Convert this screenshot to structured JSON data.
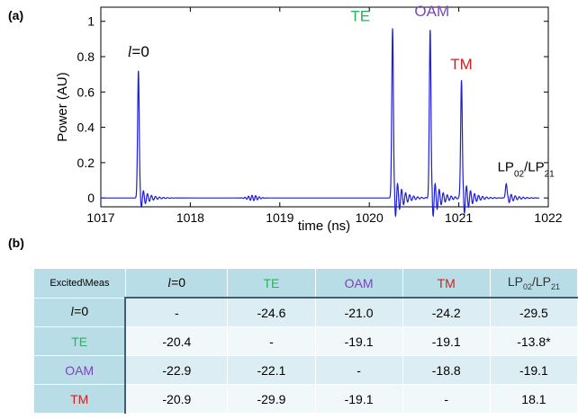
{
  "panel_labels": {
    "a": "(a)",
    "b": "(b)"
  },
  "chart_data": {
    "type": "line",
    "xlabel": "time (ns)",
    "ylabel": "Power (AU)",
    "xlim": [
      1017,
      1022
    ],
    "ylim": [
      -0.05,
      1.08
    ],
    "xticks": [
      "1017",
      "1018",
      "1019",
      "1020",
      "1021",
      "1022"
    ],
    "yticks": [
      "0",
      "0.2",
      "0.4",
      "0.6",
      "0.8",
      "1"
    ],
    "line_color": "#1f1fd6",
    "grid": false,
    "series": [
      {
        "peaks": [
          {
            "x": 1017.42,
            "y": 0.72
          },
          {
            "x": 1020.26,
            "y": 0.96
          },
          {
            "x": 1020.68,
            "y": 0.95
          },
          {
            "x": 1021.03,
            "y": 0.67
          },
          {
            "x": 1021.53,
            "y": 0.08
          }
        ]
      }
    ],
    "annotations": [
      {
        "text_prefix": "l",
        "text": "=0",
        "x": 1017.42,
        "y": 0.8,
        "color": "#000000"
      },
      {
        "text": "TE",
        "x": 1019.9,
        "y": 1.0,
        "color": "#27b35a"
      },
      {
        "text": "OAM",
        "x": 1020.7,
        "y": 1.03,
        "color": "#7b44b8"
      },
      {
        "text": "TM",
        "x": 1021.03,
        "y": 0.73,
        "color": "#d01f1f"
      },
      {
        "text": "LP02/LP21",
        "x": 1021.75,
        "y": 0.15,
        "color": "#000000"
      }
    ]
  },
  "table": {
    "corner": "Excited\\Meas",
    "col_headers": [
      {
        "label": "l=0",
        "color": "#000000"
      },
      {
        "label": "TE",
        "color": "#27b35a"
      },
      {
        "label": "OAM",
        "color": "#7b44b8"
      },
      {
        "label": "TM",
        "color": "#d01f1f"
      },
      {
        "label": "LP02/LP21",
        "color": "#333333"
      }
    ],
    "rows": [
      {
        "label": "l=0",
        "color": "#000000",
        "cells": [
          "-",
          "-24.6",
          "-21.0",
          "-24.2",
          "-29.5"
        ]
      },
      {
        "label": "TE",
        "color": "#27b35a",
        "cells": [
          "-20.4",
          "-",
          "-19.1",
          "-19.1",
          "-13.8*"
        ]
      },
      {
        "label": "OAM",
        "color": "#7b44b8",
        "cells": [
          "-22.9",
          "-22.1",
          "-",
          "-18.8",
          "-19.1"
        ]
      },
      {
        "label": "TM",
        "color": "#d01f1f",
        "cells": [
          "-20.9",
          "-29.9",
          "-19.1",
          "-",
          "18.1"
        ]
      }
    ]
  }
}
